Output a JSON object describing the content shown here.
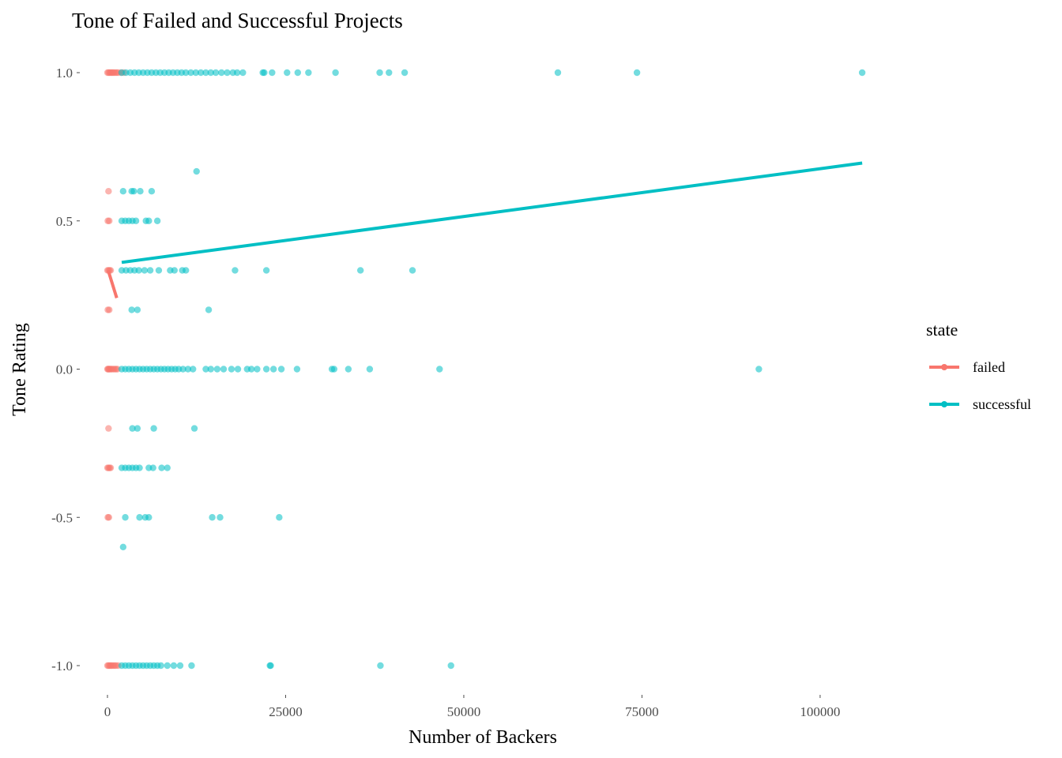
{
  "chart_data": {
    "type": "scatter",
    "title": "Tone of Failed and Successful Projects",
    "xlabel": "Number of Backers",
    "ylabel": "Tone Rating",
    "xlim": [
      -5000,
      111000
    ],
    "ylim": [
      -1.08,
      1.12
    ],
    "x_ticks": [
      0,
      25000,
      50000,
      75000,
      100000
    ],
    "x_tick_labels": [
      "0",
      "25000",
      "50000",
      "75000",
      "100000"
    ],
    "y_ticks": [
      -1.0,
      -0.5,
      0.0,
      0.5,
      1.0
    ],
    "y_tick_labels": [
      "-1.0",
      "-0.5",
      "0.0",
      "0.5",
      "1.0"
    ],
    "grid": false,
    "legend": {
      "title": "state",
      "placement": "right",
      "entries": [
        {
          "label": "failed",
          "color": "#F8766D"
        },
        {
          "label": "successful",
          "color": "#00BFC4"
        }
      ]
    },
    "series": [
      {
        "name": "failed",
        "color": "#F8766D",
        "points": [
          [
            0,
            1.0
          ],
          [
            150,
            1.0
          ],
          [
            300,
            1.0
          ],
          [
            450,
            1.0
          ],
          [
            600,
            1.0
          ],
          [
            750,
            1.0
          ],
          [
            900,
            1.0
          ],
          [
            1100,
            1.0
          ],
          [
            1300,
            1.0
          ],
          [
            1500,
            1.0
          ],
          [
            1900,
            1.0
          ],
          [
            2300,
            1.0
          ],
          [
            150,
            0.6
          ],
          [
            50,
            0.5
          ],
          [
            250,
            0.5
          ],
          [
            0,
            0.333
          ],
          [
            150,
            0.333
          ],
          [
            300,
            0.333
          ],
          [
            450,
            0.333
          ],
          [
            50,
            0.2
          ],
          [
            250,
            0.2
          ],
          [
            0,
            0.0
          ],
          [
            100,
            0.0
          ],
          [
            200,
            0.0
          ],
          [
            300,
            0.0
          ],
          [
            450,
            0.0
          ],
          [
            600,
            0.0
          ],
          [
            800,
            0.0
          ],
          [
            1000,
            0.0
          ],
          [
            1200,
            0.0
          ],
          [
            1400,
            0.0
          ],
          [
            150,
            -0.2
          ],
          [
            0,
            -0.333
          ],
          [
            150,
            -0.333
          ],
          [
            300,
            -0.333
          ],
          [
            450,
            -0.333
          ],
          [
            50,
            -0.5
          ],
          [
            200,
            -0.5
          ],
          [
            0,
            -1.0
          ],
          [
            150,
            -1.0
          ],
          [
            300,
            -1.0
          ],
          [
            450,
            -1.0
          ],
          [
            600,
            -1.0
          ],
          [
            800,
            -1.0
          ],
          [
            1000,
            -1.0
          ],
          [
            1200,
            -1.0
          ],
          [
            1500,
            -1.0
          ]
        ],
        "trend": [
          [
            100,
            0.333
          ],
          [
            1300,
            0.24
          ]
        ]
      },
      {
        "name": "successful",
        "color": "#00BFC4",
        "points": [
          [
            2000,
            1.0
          ],
          [
            2600,
            1.0
          ],
          [
            3200,
            1.0
          ],
          [
            3800,
            1.0
          ],
          [
            4400,
            1.0
          ],
          [
            5000,
            1.0
          ],
          [
            5600,
            1.0
          ],
          [
            6200,
            1.0
          ],
          [
            6800,
            1.0
          ],
          [
            7400,
            1.0
          ],
          [
            8000,
            1.0
          ],
          [
            8600,
            1.0
          ],
          [
            9200,
            1.0
          ],
          [
            9800,
            1.0
          ],
          [
            10400,
            1.0
          ],
          [
            11000,
            1.0
          ],
          [
            11700,
            1.0
          ],
          [
            12400,
            1.0
          ],
          [
            13100,
            1.0
          ],
          [
            13800,
            1.0
          ],
          [
            14500,
            1.0
          ],
          [
            15200,
            1.0
          ],
          [
            16000,
            1.0
          ],
          [
            16800,
            1.0
          ],
          [
            17600,
            1.0
          ],
          [
            18200,
            1.0
          ],
          [
            19000,
            1.0
          ],
          [
            21800,
            1.0
          ],
          [
            22000,
            1.0
          ],
          [
            23100,
            1.0
          ],
          [
            25200,
            1.0
          ],
          [
            26700,
            1.0
          ],
          [
            28200,
            1.0
          ],
          [
            32000,
            1.0
          ],
          [
            38200,
            1.0
          ],
          [
            39500,
            1.0
          ],
          [
            41700,
            1.0
          ],
          [
            63200,
            1.0
          ],
          [
            74300,
            1.0
          ],
          [
            105900,
            1.0
          ],
          [
            12500,
            0.667
          ],
          [
            2200,
            0.6
          ],
          [
            3400,
            0.6
          ],
          [
            3700,
            0.6
          ],
          [
            4600,
            0.6
          ],
          [
            6200,
            0.6
          ],
          [
            2000,
            0.5
          ],
          [
            2500,
            0.5
          ],
          [
            3000,
            0.5
          ],
          [
            3500,
            0.5
          ],
          [
            4000,
            0.5
          ],
          [
            5400,
            0.5
          ],
          [
            5800,
            0.5
          ],
          [
            7000,
            0.5
          ],
          [
            2000,
            0.333
          ],
          [
            2600,
            0.333
          ],
          [
            3200,
            0.333
          ],
          [
            3800,
            0.333
          ],
          [
            4400,
            0.333
          ],
          [
            5200,
            0.333
          ],
          [
            6000,
            0.333
          ],
          [
            7200,
            0.333
          ],
          [
            8800,
            0.333
          ],
          [
            9400,
            0.333
          ],
          [
            10500,
            0.333
          ],
          [
            11000,
            0.333
          ],
          [
            17900,
            0.333
          ],
          [
            22300,
            0.333
          ],
          [
            35500,
            0.333
          ],
          [
            42800,
            0.333
          ],
          [
            3400,
            0.2
          ],
          [
            4200,
            0.2
          ],
          [
            14200,
            0.2
          ],
          [
            2000,
            0.0
          ],
          [
            2500,
            0.0
          ],
          [
            3000,
            0.0
          ],
          [
            3500,
            0.0
          ],
          [
            4000,
            0.0
          ],
          [
            4500,
            0.0
          ],
          [
            5000,
            0.0
          ],
          [
            5500,
            0.0
          ],
          [
            6000,
            0.0
          ],
          [
            6500,
            0.0
          ],
          [
            7000,
            0.0
          ],
          [
            7500,
            0.0
          ],
          [
            8000,
            0.0
          ],
          [
            8500,
            0.0
          ],
          [
            9000,
            0.0
          ],
          [
            9500,
            0.0
          ],
          [
            10000,
            0.0
          ],
          [
            10600,
            0.0
          ],
          [
            11300,
            0.0
          ],
          [
            12000,
            0.0
          ],
          [
            13800,
            0.0
          ],
          [
            14500,
            0.0
          ],
          [
            15400,
            0.0
          ],
          [
            16300,
            0.0
          ],
          [
            17400,
            0.0
          ],
          [
            18300,
            0.0
          ],
          [
            19600,
            0.0
          ],
          [
            20200,
            0.0
          ],
          [
            21000,
            0.0
          ],
          [
            22300,
            0.0
          ],
          [
            23300,
            0.0
          ],
          [
            24400,
            0.0
          ],
          [
            26600,
            0.0
          ],
          [
            31500,
            0.0
          ],
          [
            31800,
            0.0
          ],
          [
            33800,
            0.0
          ],
          [
            36800,
            0.0
          ],
          [
            46600,
            0.0
          ],
          [
            91400,
            0.0
          ],
          [
            3500,
            -0.2
          ],
          [
            4200,
            -0.2
          ],
          [
            6500,
            -0.2
          ],
          [
            12200,
            -0.2
          ],
          [
            2000,
            -0.333
          ],
          [
            2500,
            -0.333
          ],
          [
            3000,
            -0.333
          ],
          [
            3500,
            -0.333
          ],
          [
            4000,
            -0.333
          ],
          [
            4500,
            -0.333
          ],
          [
            5800,
            -0.333
          ],
          [
            6400,
            -0.333
          ],
          [
            7600,
            -0.333
          ],
          [
            8400,
            -0.333
          ],
          [
            2500,
            -0.5
          ],
          [
            4500,
            -0.5
          ],
          [
            5300,
            -0.5
          ],
          [
            5800,
            -0.5
          ],
          [
            14700,
            -0.5
          ],
          [
            15800,
            -0.5
          ],
          [
            24100,
            -0.5
          ],
          [
            2200,
            -0.6
          ],
          [
            2000,
            -1.0
          ],
          [
            2500,
            -1.0
          ],
          [
            3000,
            -1.0
          ],
          [
            3500,
            -1.0
          ],
          [
            4000,
            -1.0
          ],
          [
            4500,
            -1.0
          ],
          [
            5000,
            -1.0
          ],
          [
            5500,
            -1.0
          ],
          [
            6000,
            -1.0
          ],
          [
            6500,
            -1.0
          ],
          [
            7000,
            -1.0
          ],
          [
            7500,
            -1.0
          ],
          [
            8400,
            -1.0
          ],
          [
            9300,
            -1.0
          ],
          [
            10200,
            -1.0
          ],
          [
            11800,
            -1.0
          ],
          [
            22800,
            -1.0
          ],
          [
            22900,
            -1.0
          ],
          [
            38300,
            -1.0
          ],
          [
            48200,
            -1.0
          ]
        ],
        "trend": [
          [
            2000,
            0.36
          ],
          [
            105900,
            0.695
          ]
        ]
      }
    ]
  }
}
